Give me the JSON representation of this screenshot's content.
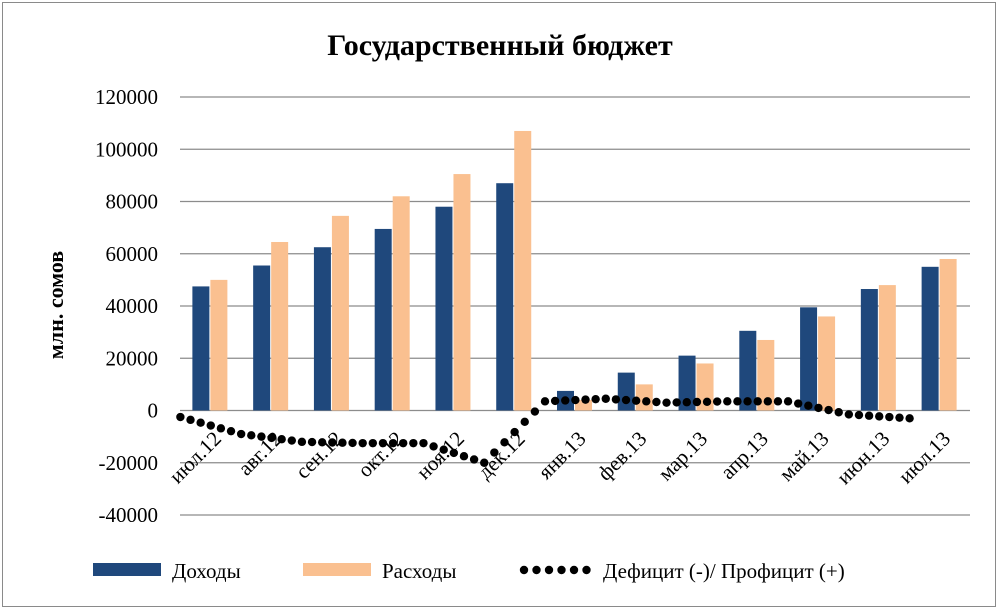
{
  "chart_data": {
    "type": "bar",
    "title": "Государственный бюджет",
    "ylabel": "млн. сомов",
    "xlabel": "",
    "ylim": [
      -40000,
      120000
    ],
    "yticks": [
      120000,
      100000,
      80000,
      60000,
      40000,
      20000,
      0,
      -20000,
      -40000
    ],
    "grid": true,
    "legend_position": "bottom",
    "categories": [
      "июл.12",
      "авг.12",
      "сен.12",
      "окт.12",
      "ноя.12",
      "дек.12",
      "янв.13",
      "фев.13",
      "мар.13",
      "апр.13",
      "май.13",
      "июн.13",
      "июл.13"
    ],
    "series": [
      {
        "name": "Доходы",
        "type": "bar",
        "color": "#1f487c",
        "values": [
          47500,
          55500,
          62500,
          69500,
          78000,
          87000,
          7500,
          14500,
          21000,
          30500,
          39500,
          46500,
          55000
        ]
      },
      {
        "name": "Расходы",
        "type": "bar",
        "color": "#fac090",
        "values": [
          50000,
          64500,
          74500,
          82000,
          90500,
          107000,
          4000,
          10000,
          18000,
          27000,
          36000,
          48000,
          58000
        ]
      },
      {
        "name": "Дефицит (-)/ Профицит (+)",
        "type": "line",
        "style": "dotted",
        "color": "#000000",
        "values": [
          -2500,
          -9000,
          -12000,
          -12500,
          -12500,
          -20000,
          3500,
          4500,
          3000,
          3500,
          3500,
          -1500,
          -3000
        ]
      }
    ]
  }
}
